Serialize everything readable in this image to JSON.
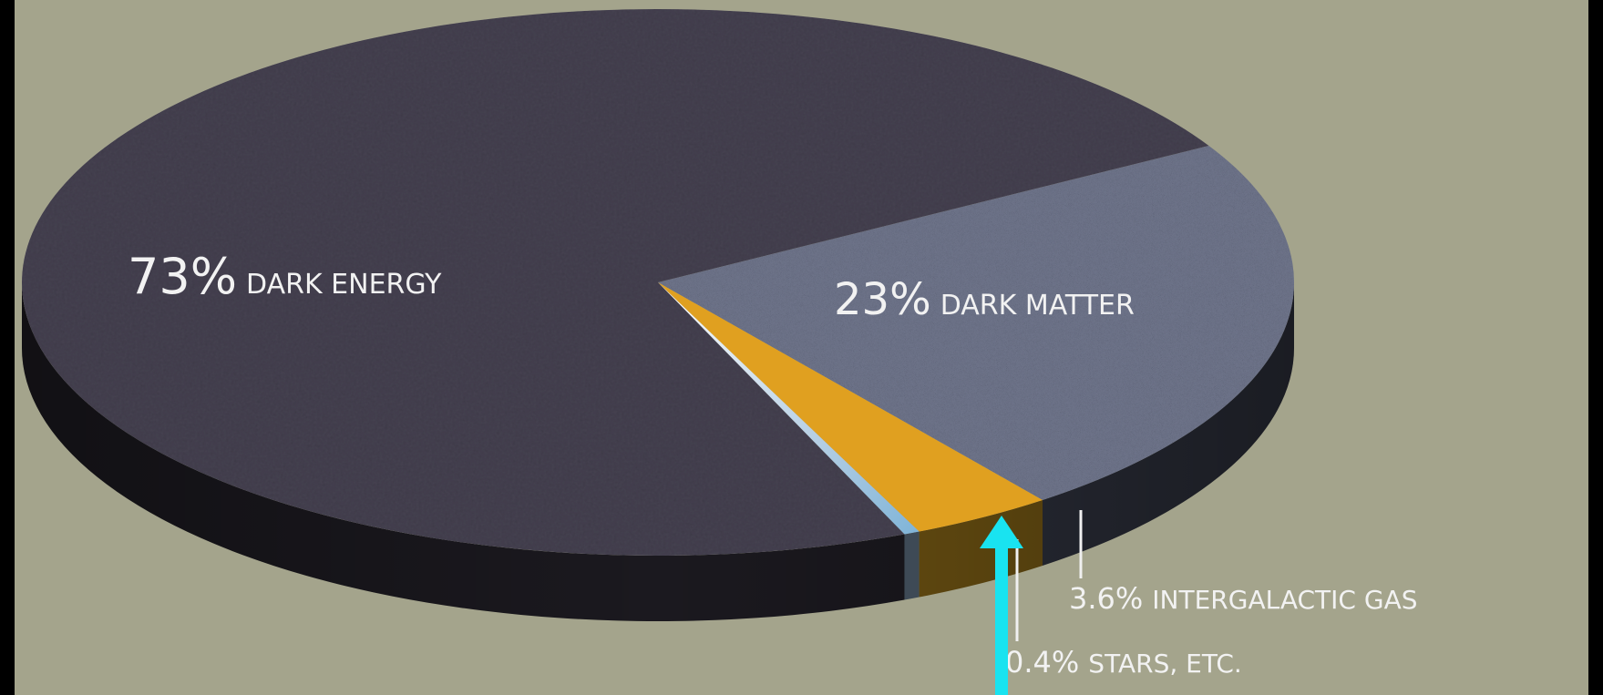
{
  "colors": {
    "frame": "#000000",
    "background": "#a4a48c",
    "dark_energy_top": "#454150",
    "dark_energy_side": "#1b191f",
    "dark_matter_top": "#6d7389",
    "gas_top": "#e0a020",
    "gas_side": "#6e5312",
    "stars_top": "#c8d8e8",
    "label_text": "#f2f2f2",
    "arrow": "#19e3f0"
  },
  "chart_data": {
    "type": "pie",
    "style": "3d",
    "title": "",
    "slices": [
      {
        "pct_label": "73%",
        "name": "DARK ENERGY",
        "value": 73
      },
      {
        "pct_label": "23%",
        "name": "DARK MATTER",
        "value": 23
      },
      {
        "pct_label": "3.6%",
        "name": "INTERGALACTIC GAS",
        "value": 3.6
      },
      {
        "pct_label": "0.4%",
        "name": "STARS, ETC.",
        "value": 0.4
      }
    ],
    "annotation": {
      "type": "arrow",
      "target_slice": "STARS, ETC."
    }
  }
}
